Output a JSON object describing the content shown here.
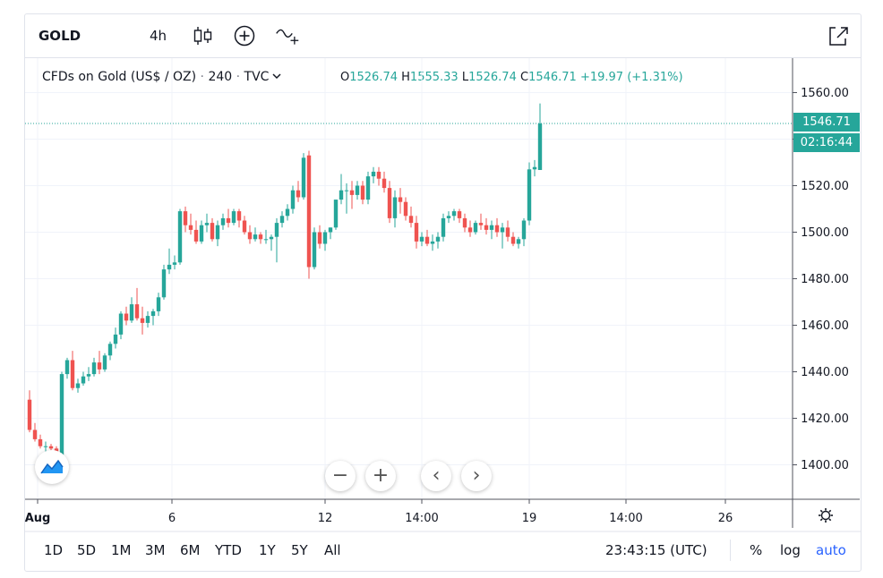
{
  "toolbar": {
    "symbol": "GOLD",
    "interval": "4h"
  },
  "legend": {
    "name": "CFDs on Gold (US$ / OZ)",
    "dot1": "·",
    "resolution": "240",
    "dot2": "·",
    "source": "TVC",
    "o_label": "O",
    "o_value": "1526.74",
    "h_label": "H",
    "h_value": "1555.33",
    "l_label": "L",
    "l_value": "1526.74",
    "c_label": "C",
    "c_value": "1546.71",
    "change": "+19.97 (+1.31%)"
  },
  "last_price": {
    "value": "1546.71",
    "countdown": "02:16:44"
  },
  "bottom": {
    "ranges": [
      "1D",
      "5D",
      "1M",
      "3M",
      "6M",
      "YTD",
      "1Y",
      "5Y",
      "All"
    ],
    "clock": "23:43:15 (UTC)",
    "percent": "%",
    "log": "log",
    "auto": "auto"
  },
  "colors": {
    "up": "#26a69a",
    "down": "#ef5350",
    "grid": "#f0f3fa",
    "accent": "#2962ff"
  },
  "chart_data": {
    "type": "candlestick",
    "ylim": [
      1385,
      1565
    ],
    "yticks": [
      "1400.00",
      "1420.00",
      "1440.00",
      "1460.00",
      "1480.00",
      "1500.00",
      "1520.00",
      "1540.00",
      "1560.00"
    ],
    "xticks": [
      {
        "label": "Aug",
        "index": 1.5
      },
      {
        "label": "6",
        "index": 26.5
      },
      {
        "label": "12",
        "index": 55
      },
      {
        "label": "14:00",
        "index": 73
      },
      {
        "label": "19",
        "index": 93
      },
      {
        "label": "14:00",
        "index": 111
      },
      {
        "label": "26",
        "index": 129.5
      }
    ],
    "current_price": 1546.71,
    "candles": [
      [
        1428,
        1432,
        1414,
        1415
      ],
      [
        1415,
        1418,
        1410,
        1411
      ],
      [
        1411,
        1413,
        1407,
        1408
      ],
      [
        1408,
        1410,
        1405,
        1408
      ],
      [
        1408,
        1409,
        1404,
        1407
      ],
      [
        1407,
        1408,
        1403,
        1404
      ],
      [
        1404,
        1440,
        1403,
        1439
      ],
      [
        1439,
        1446,
        1437,
        1445
      ],
      [
        1445,
        1449,
        1432,
        1433
      ],
      [
        1433,
        1437,
        1431,
        1435
      ],
      [
        1435,
        1440,
        1434,
        1438
      ],
      [
        1438,
        1442,
        1436,
        1439
      ],
      [
        1439,
        1446,
        1438,
        1444
      ],
      [
        1444,
        1449,
        1439,
        1441
      ],
      [
        1441,
        1448,
        1440,
        1447
      ],
      [
        1447,
        1453,
        1445,
        1452
      ],
      [
        1452,
        1459,
        1450,
        1456
      ],
      [
        1456,
        1466,
        1454,
        1465
      ],
      [
        1465,
        1468,
        1460,
        1462
      ],
      [
        1462,
        1472,
        1461,
        1469
      ],
      [
        1469,
        1476,
        1462,
        1463
      ],
      [
        1463,
        1468,
        1456,
        1461
      ],
      [
        1461,
        1466,
        1459,
        1464
      ],
      [
        1464,
        1467,
        1460,
        1466
      ],
      [
        1466,
        1474,
        1464,
        1472
      ],
      [
        1472,
        1486,
        1471,
        1484
      ],
      [
        1484,
        1493,
        1482,
        1486
      ],
      [
        1486,
        1490,
        1484,
        1487
      ],
      [
        1487,
        1510,
        1486,
        1509
      ],
      [
        1509,
        1511,
        1500,
        1503
      ],
      [
        1503,
        1508,
        1499,
        1501
      ],
      [
        1501,
        1505,
        1495,
        1496
      ],
      [
        1496,
        1505,
        1495,
        1503
      ],
      [
        1503,
        1508,
        1500,
        1504
      ],
      [
        1504,
        1506,
        1496,
        1497
      ],
      [
        1497,
        1505,
        1494,
        1503
      ],
      [
        1503,
        1508,
        1501,
        1506
      ],
      [
        1506,
        1510,
        1502,
        1504
      ],
      [
        1504,
        1510,
        1503,
        1509
      ],
      [
        1509,
        1510,
        1502,
        1505
      ],
      [
        1505,
        1507,
        1499,
        1500
      ],
      [
        1500,
        1503,
        1495,
        1497
      ],
      [
        1497,
        1502,
        1496,
        1499
      ],
      [
        1499,
        1500,
        1495,
        1497
      ],
      [
        1497,
        1501,
        1495,
        1497
      ],
      [
        1497,
        1499,
        1492,
        1498
      ],
      [
        1498,
        1506,
        1487,
        1504
      ],
      [
        1504,
        1509,
        1502,
        1507
      ],
      [
        1507,
        1512,
        1505,
        1510
      ],
      [
        1510,
        1520,
        1508,
        1518
      ],
      [
        1518,
        1522,
        1513,
        1515
      ],
      [
        1515,
        1534,
        1514,
        1532
      ],
      [
        1533,
        1535,
        1480,
        1485
      ],
      [
        1485,
        1502,
        1484,
        1500
      ],
      [
        1500,
        1503,
        1493,
        1495
      ],
      [
        1495,
        1501,
        1492,
        1500
      ],
      [
        1500,
        1502,
        1497,
        1502
      ],
      [
        1502,
        1514,
        1501,
        1514
      ],
      [
        1514,
        1525,
        1512,
        1518
      ],
      [
        1518,
        1521,
        1508,
        1518
      ],
      [
        1518,
        1522,
        1510,
        1516
      ],
      [
        1516,
        1522,
        1514,
        1520
      ],
      [
        1520,
        1522,
        1512,
        1514
      ],
      [
        1514,
        1526,
        1512,
        1524
      ],
      [
        1524,
        1528,
        1521,
        1526
      ],
      [
        1526,
        1528,
        1520,
        1523
      ],
      [
        1523,
        1526,
        1517,
        1519
      ],
      [
        1519,
        1522,
        1504,
        1506
      ],
      [
        1506,
        1518,
        1502,
        1515
      ],
      [
        1515,
        1519,
        1508,
        1513
      ],
      [
        1513,
        1515,
        1505,
        1507
      ],
      [
        1507,
        1511,
        1502,
        1504
      ],
      [
        1504,
        1507,
        1493,
        1496
      ],
      [
        1496,
        1500,
        1494,
        1498
      ],
      [
        1498,
        1501,
        1494,
        1495
      ],
      [
        1495,
        1499,
        1492,
        1496
      ],
      [
        1496,
        1500,
        1493,
        1498
      ],
      [
        1498,
        1508,
        1496,
        1506
      ],
      [
        1506,
        1509,
        1504,
        1507
      ],
      [
        1507,
        1510,
        1505,
        1509
      ],
      [
        1509,
        1510,
        1504,
        1506
      ],
      [
        1506,
        1508,
        1500,
        1502
      ],
      [
        1502,
        1505,
        1498,
        1500
      ],
      [
        1500,
        1505,
        1499,
        1504
      ],
      [
        1504,
        1508,
        1501,
        1503
      ],
      [
        1503,
        1506,
        1499,
        1501
      ],
      [
        1501,
        1505,
        1497,
        1503
      ],
      [
        1503,
        1506,
        1498,
        1500
      ],
      [
        1500,
        1504,
        1493,
        1502
      ],
      [
        1502,
        1505,
        1496,
        1498
      ],
      [
        1498,
        1500,
        1494,
        1495
      ],
      [
        1495,
        1498,
        1493,
        1497
      ],
      [
        1497,
        1506,
        1494,
        1505
      ],
      [
        1505,
        1530,
        1503,
        1527
      ],
      [
        1527,
        1531,
        1524,
        1528
      ],
      [
        1526.74,
        1555.33,
        1526.74,
        1546.71
      ]
    ]
  }
}
